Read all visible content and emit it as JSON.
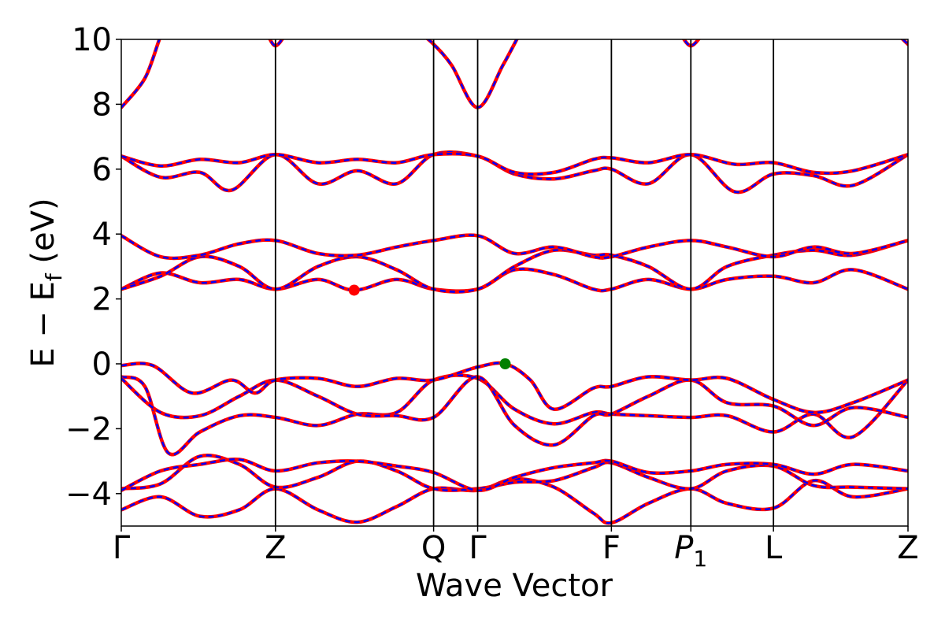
{
  "chart_data": {
    "type": "line",
    "title": "",
    "xlabel": "Wave Vector",
    "ylabel": "E − E",
    "ylabel_sub": "f",
    "ylabel_unit": " (eV)",
    "ylim": [
      -5,
      10
    ],
    "yticks": [
      10,
      8,
      6,
      4,
      2,
      0,
      -2,
      -4
    ],
    "ytick_labels": [
      "10",
      "8",
      "6",
      "4",
      "2",
      "0",
      "−2",
      "−4"
    ],
    "grid": false,
    "kpoints": [
      {
        "label": "Γ",
        "sub": "",
        "italic": false,
        "x": 0.0
      },
      {
        "label": "Z",
        "sub": "",
        "italic": false,
        "x": 1.96
      },
      {
        "label": "Q",
        "sub": "",
        "italic": false,
        "x": 3.97
      },
      {
        "label": "Γ",
        "sub": "",
        "italic": false,
        "x": 4.53
      },
      {
        "label": "F",
        "sub": "",
        "italic": false,
        "x": 6.23
      },
      {
        "label": "P",
        "sub": "1",
        "italic": true,
        "x": 7.24
      },
      {
        "label": "L",
        "sub": "",
        "italic": false,
        "x": 8.29
      },
      {
        "label": "Z",
        "sub": "",
        "italic": false,
        "x": 10.0
      }
    ],
    "series_styles": [
      {
        "color": "#ff0000",
        "style": "solid",
        "width": 4.5
      },
      {
        "color": "#0000ff",
        "style": "dashed",
        "width": 2.5
      }
    ],
    "markers": [
      {
        "x": 2.96,
        "y": 2.27,
        "color": "#ff0000"
      },
      {
        "x": 4.88,
        "y": 0.0,
        "color": "#008000"
      }
    ],
    "bands": [
      [
        [
          0.0,
          -4.5
        ],
        [
          0.5,
          -4.1
        ],
        [
          1.0,
          -4.7
        ],
        [
          1.5,
          -4.5
        ],
        [
          1.96,
          -3.85
        ],
        [
          2.5,
          -4.5
        ],
        [
          3.0,
          -4.88
        ],
        [
          3.5,
          -4.4
        ],
        [
          3.97,
          -3.85
        ],
        [
          4.53,
          -3.9
        ],
        [
          5.0,
          -3.55
        ],
        [
          5.5,
          -3.8
        ],
        [
          6.0,
          -4.6
        ],
        [
          6.23,
          -4.9
        ],
        [
          6.7,
          -4.3
        ],
        [
          7.24,
          -3.85
        ],
        [
          7.7,
          -4.3
        ],
        [
          8.29,
          -4.45
        ],
        [
          8.8,
          -3.6
        ],
        [
          9.3,
          -4.1
        ],
        [
          10.0,
          -3.85
        ]
      ],
      [
        [
          0.0,
          -3.85
        ],
        [
          0.5,
          -3.7
        ],
        [
          1.0,
          -2.85
        ],
        [
          1.5,
          -3.1
        ],
        [
          1.96,
          -3.8
        ],
        [
          2.5,
          -3.5
        ],
        [
          3.0,
          -3.0
        ],
        [
          3.5,
          -3.3
        ],
        [
          3.97,
          -3.85
        ],
        [
          4.53,
          -3.85
        ],
        [
          5.0,
          -3.65
        ],
        [
          5.5,
          -3.6
        ],
        [
          6.0,
          -3.2
        ],
        [
          6.23,
          -3.05
        ],
        [
          6.7,
          -3.5
        ],
        [
          7.24,
          -3.85
        ],
        [
          7.7,
          -3.3
        ],
        [
          8.29,
          -3.15
        ],
        [
          8.8,
          -3.75
        ],
        [
          9.3,
          -3.8
        ],
        [
          10.0,
          -3.85
        ]
      ],
      [
        [
          0.0,
          -3.9
        ],
        [
          0.5,
          -3.3
        ],
        [
          1.0,
          -3.1
        ],
        [
          1.5,
          -2.95
        ],
        [
          1.96,
          -3.3
        ],
        [
          2.5,
          -3.05
        ],
        [
          3.0,
          -3.0
        ],
        [
          3.5,
          -3.15
        ],
        [
          3.97,
          -3.35
        ],
        [
          4.53,
          -3.9
        ],
        [
          5.0,
          -3.5
        ],
        [
          5.5,
          -3.2
        ],
        [
          6.0,
          -3.05
        ],
        [
          6.23,
          -3.0
        ],
        [
          6.7,
          -3.35
        ],
        [
          7.24,
          -3.3
        ],
        [
          7.7,
          -3.1
        ],
        [
          8.29,
          -3.1
        ],
        [
          8.8,
          -3.4
        ],
        [
          9.3,
          -3.1
        ],
        [
          10.0,
          -3.3
        ]
      ],
      [
        [
          0.0,
          -0.4
        ],
        [
          0.3,
          -0.7
        ],
        [
          0.6,
          -2.75
        ],
        [
          1.0,
          -2.1
        ],
        [
          1.5,
          -1.6
        ],
        [
          1.96,
          -1.65
        ],
        [
          2.5,
          -1.9
        ],
        [
          3.0,
          -1.55
        ],
        [
          3.5,
          -1.5
        ],
        [
          3.97,
          -0.5
        ],
        [
          4.53,
          -0.45
        ],
        [
          5.0,
          -1.4
        ],
        [
          5.5,
          -1.85
        ],
        [
          6.0,
          -1.5
        ],
        [
          6.23,
          -1.55
        ],
        [
          6.7,
          -1.6
        ],
        [
          7.24,
          -1.65
        ],
        [
          7.7,
          -1.6
        ],
        [
          8.29,
          -2.1
        ],
        [
          8.8,
          -1.55
        ],
        [
          9.3,
          -2.25
        ],
        [
          10.0,
          -0.5
        ]
      ],
      [
        [
          0.0,
          -0.45
        ],
        [
          0.5,
          -1.5
        ],
        [
          1.0,
          -1.6
        ],
        [
          1.5,
          -1.0
        ],
        [
          1.96,
          -0.5
        ],
        [
          2.5,
          -1.0
        ],
        [
          3.0,
          -1.55
        ],
        [
          3.5,
          -1.6
        ],
        [
          3.97,
          -1.65
        ],
        [
          4.53,
          -0.4
        ],
        [
          5.0,
          -1.9
        ],
        [
          5.5,
          -2.5
        ],
        [
          6.0,
          -1.6
        ],
        [
          6.23,
          -1.55
        ],
        [
          6.7,
          -1.0
        ],
        [
          7.24,
          -0.5
        ],
        [
          7.7,
          -1.2
        ],
        [
          8.29,
          -1.3
        ],
        [
          8.8,
          -1.9
        ],
        [
          9.3,
          -1.35
        ],
        [
          10.0,
          -1.65
        ]
      ],
      [
        [
          0.0,
          -0.05
        ],
        [
          0.4,
          -0.05
        ],
        [
          0.9,
          -0.9
        ],
        [
          1.4,
          -0.5
        ],
        [
          1.7,
          -0.9
        ],
        [
          1.96,
          -0.5
        ],
        [
          2.5,
          -0.45
        ],
        [
          3.0,
          -0.7
        ],
        [
          3.5,
          -0.45
        ],
        [
          3.97,
          -0.5
        ],
        [
          4.53,
          -0.1
        ],
        [
          4.88,
          0.0
        ],
        [
          5.2,
          -0.5
        ],
        [
          5.5,
          -1.4
        ],
        [
          6.0,
          -0.75
        ],
        [
          6.23,
          -0.7
        ],
        [
          6.7,
          -0.4
        ],
        [
          7.24,
          -0.5
        ],
        [
          7.7,
          -0.45
        ],
        [
          8.29,
          -1.1
        ],
        [
          8.8,
          -1.5
        ],
        [
          9.3,
          -1.2
        ],
        [
          10.0,
          -0.5
        ]
      ],
      [
        [
          0.0,
          2.3
        ],
        [
          0.5,
          2.8
        ],
        [
          1.0,
          2.5
        ],
        [
          1.5,
          2.6
        ],
        [
          1.96,
          2.3
        ],
        [
          2.5,
          2.6
        ],
        [
          2.96,
          2.27
        ],
        [
          3.5,
          2.6
        ],
        [
          3.97,
          2.3
        ],
        [
          4.53,
          2.3
        ],
        [
          5.0,
          2.9
        ],
        [
          5.5,
          2.75
        ],
        [
          6.0,
          2.3
        ],
        [
          6.23,
          2.3
        ],
        [
          6.7,
          2.6
        ],
        [
          7.24,
          2.3
        ],
        [
          7.7,
          2.6
        ],
        [
          8.29,
          2.7
        ],
        [
          8.8,
          2.5
        ],
        [
          9.3,
          2.9
        ],
        [
          10.0,
          2.3
        ]
      ],
      [
        [
          0.0,
          2.3
        ],
        [
          0.5,
          2.7
        ],
        [
          1.0,
          3.3
        ],
        [
          1.5,
          3.0
        ],
        [
          1.96,
          2.3
        ],
        [
          2.5,
          3.0
        ],
        [
          3.0,
          3.3
        ],
        [
          3.5,
          2.9
        ],
        [
          3.97,
          2.3
        ],
        [
          4.53,
          2.3
        ],
        [
          5.0,
          3.0
        ],
        [
          5.5,
          3.5
        ],
        [
          6.0,
          3.35
        ],
        [
          6.23,
          3.35
        ],
        [
          6.7,
          3.0
        ],
        [
          7.24,
          2.3
        ],
        [
          7.7,
          3.0
        ],
        [
          8.29,
          3.35
        ],
        [
          8.8,
          3.5
        ],
        [
          9.3,
          3.35
        ],
        [
          10.0,
          3.8
        ]
      ],
      [
        [
          0.0,
          3.95
        ],
        [
          0.5,
          3.3
        ],
        [
          1.0,
          3.35
        ],
        [
          1.5,
          3.7
        ],
        [
          1.96,
          3.8
        ],
        [
          2.5,
          3.4
        ],
        [
          3.0,
          3.35
        ],
        [
          3.5,
          3.6
        ],
        [
          3.97,
          3.8
        ],
        [
          4.53,
          3.95
        ],
        [
          5.0,
          3.4
        ],
        [
          5.5,
          3.6
        ],
        [
          6.0,
          3.3
        ],
        [
          6.23,
          3.3
        ],
        [
          6.7,
          3.6
        ],
        [
          7.24,
          3.8
        ],
        [
          7.7,
          3.6
        ],
        [
          8.29,
          3.3
        ],
        [
          8.8,
          3.6
        ],
        [
          9.3,
          3.4
        ],
        [
          10.0,
          3.8
        ]
      ],
      [
        [
          0.0,
          6.4
        ],
        [
          0.5,
          5.75
        ],
        [
          1.0,
          5.9
        ],
        [
          1.4,
          5.35
        ],
        [
          1.96,
          6.45
        ],
        [
          2.5,
          5.55
        ],
        [
          3.0,
          5.95
        ],
        [
          3.5,
          5.55
        ],
        [
          3.97,
          6.45
        ],
        [
          4.53,
          6.4
        ],
        [
          5.0,
          5.85
        ],
        [
          5.5,
          5.7
        ],
        [
          6.0,
          5.95
        ],
        [
          6.23,
          6.0
        ],
        [
          6.7,
          5.55
        ],
        [
          7.24,
          6.45
        ],
        [
          7.8,
          5.3
        ],
        [
          8.29,
          5.85
        ],
        [
          8.8,
          5.8
        ],
        [
          9.3,
          5.5
        ],
        [
          10.0,
          6.45
        ]
      ],
      [
        [
          0.0,
          6.4
        ],
        [
          0.5,
          6.1
        ],
        [
          1.0,
          6.3
        ],
        [
          1.5,
          6.2
        ],
        [
          1.96,
          6.45
        ],
        [
          2.5,
          6.2
        ],
        [
          3.0,
          6.3
        ],
        [
          3.5,
          6.2
        ],
        [
          3.97,
          6.45
        ],
        [
          4.53,
          6.4
        ],
        [
          5.0,
          5.9
        ],
        [
          5.5,
          5.9
        ],
        [
          6.0,
          6.3
        ],
        [
          6.23,
          6.35
        ],
        [
          6.7,
          6.2
        ],
        [
          7.24,
          6.45
        ],
        [
          7.8,
          6.15
        ],
        [
          8.29,
          6.2
        ],
        [
          8.8,
          5.9
        ],
        [
          9.3,
          5.95
        ],
        [
          10.0,
          6.45
        ]
      ],
      [
        [
          0.0,
          7.9
        ],
        [
          0.3,
          8.8
        ],
        [
          0.5,
          10.1
        ],
        [
          0.6,
          10.5
        ]
      ],
      [
        [
          1.85,
          10.2
        ],
        [
          1.96,
          9.8
        ],
        [
          2.1,
          10.2
        ]
      ],
      [
        [
          3.8,
          10.2
        ],
        [
          3.97,
          9.85
        ],
        [
          4.2,
          9.2
        ],
        [
          4.53,
          7.9
        ],
        [
          4.85,
          9.2
        ],
        [
          5.05,
          10.1
        ],
        [
          5.15,
          10.5
        ]
      ],
      [
        [
          7.1,
          10.2
        ],
        [
          7.24,
          9.8
        ],
        [
          7.4,
          10.2
        ]
      ],
      [
        [
          9.85,
          10.2
        ],
        [
          10.0,
          9.85
        ]
      ]
    ]
  }
}
